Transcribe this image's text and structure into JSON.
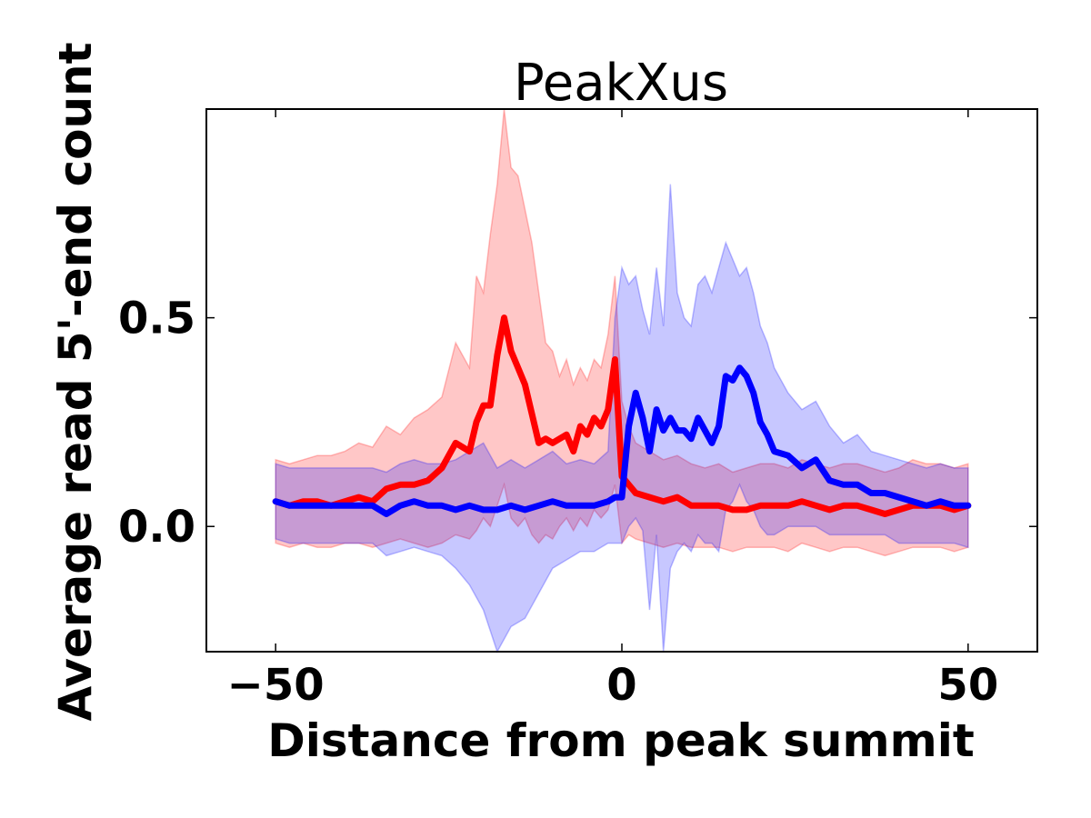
{
  "chart_data": {
    "type": "line",
    "title": "PeakXus",
    "xlabel": "Distance from peak summit",
    "ylabel": "Average read 5'-end count",
    "xlim": [
      -60,
      60
    ],
    "ylim": [
      -0.3,
      1.0
    ],
    "x_ticks": [
      {
        "value": -50,
        "label": "−50"
      },
      {
        "value": 0,
        "label": "0"
      },
      {
        "value": 50,
        "label": "50"
      }
    ],
    "y_ticks": [
      {
        "value": 0.0,
        "label": "0.0"
      },
      {
        "value": 0.5,
        "label": "0.5"
      }
    ],
    "grid": false,
    "legend": "none",
    "series": [
      {
        "color": "#ff0000",
        "band_color": "#ff0000",
        "x": [
          -50,
          -48,
          -46,
          -44,
          -42,
          -40,
          -38,
          -36,
          -34,
          -32,
          -30,
          -28,
          -26,
          -24,
          -22,
          -21,
          -20,
          -19,
          -18,
          -17,
          -16,
          -15,
          -14,
          -13,
          -12,
          -11,
          -10,
          -9,
          -8,
          -7,
          -6,
          -5,
          -4,
          -3,
          -2,
          -1,
          0,
          1,
          2,
          4,
          6,
          8,
          10,
          12,
          14,
          16,
          18,
          20,
          22,
          24,
          26,
          28,
          30,
          32,
          34,
          36,
          38,
          40,
          42,
          44,
          46,
          48,
          50
        ],
        "values": [
          0.06,
          0.05,
          0.06,
          0.06,
          0.05,
          0.06,
          0.07,
          0.06,
          0.09,
          0.1,
          0.1,
          0.11,
          0.14,
          0.2,
          0.18,
          0.25,
          0.29,
          0.29,
          0.41,
          0.5,
          0.42,
          0.38,
          0.34,
          0.27,
          0.2,
          0.21,
          0.2,
          0.21,
          0.22,
          0.18,
          0.24,
          0.22,
          0.26,
          0.24,
          0.28,
          0.4,
          0.12,
          0.1,
          0.08,
          0.07,
          0.06,
          0.07,
          0.05,
          0.05,
          0.05,
          0.04,
          0.04,
          0.05,
          0.05,
          0.05,
          0.06,
          0.05,
          0.04,
          0.05,
          0.05,
          0.04,
          0.03,
          0.04,
          0.05,
          0.05,
          0.05,
          0.04,
          0.05
        ],
        "upper": [
          0.16,
          0.15,
          0.16,
          0.17,
          0.17,
          0.18,
          0.2,
          0.19,
          0.24,
          0.22,
          0.26,
          0.28,
          0.31,
          0.44,
          0.38,
          0.6,
          0.56,
          0.7,
          0.82,
          1.0,
          0.86,
          0.84,
          0.76,
          0.68,
          0.56,
          0.44,
          0.42,
          0.36,
          0.4,
          0.34,
          0.38,
          0.35,
          0.4,
          0.38,
          0.46,
          0.6,
          0.3,
          0.24,
          0.2,
          0.18,
          0.16,
          0.17,
          0.15,
          0.14,
          0.15,
          0.13,
          0.14,
          0.15,
          0.15,
          0.14,
          0.16,
          0.15,
          0.14,
          0.15,
          0.15,
          0.14,
          0.13,
          0.14,
          0.16,
          0.15,
          0.15,
          0.14,
          0.15
        ],
        "lower": [
          -0.04,
          -0.05,
          -0.04,
          -0.05,
          -0.05,
          -0.04,
          -0.04,
          -0.05,
          -0.04,
          -0.03,
          -0.04,
          -0.05,
          -0.04,
          -0.02,
          -0.03,
          -0.01,
          0.02,
          0.0,
          0.05,
          0.1,
          0.02,
          0.0,
          0.02,
          -0.02,
          -0.04,
          -0.02,
          -0.03,
          0.0,
          0.02,
          -0.01,
          0.02,
          0.0,
          0.04,
          0.02,
          0.04,
          0.1,
          -0.04,
          -0.02,
          -0.03,
          -0.04,
          -0.05,
          -0.04,
          -0.05,
          -0.05,
          -0.05,
          -0.06,
          -0.05,
          -0.05,
          -0.05,
          -0.06,
          -0.04,
          -0.05,
          -0.06,
          -0.05,
          -0.05,
          -0.06,
          -0.07,
          -0.06,
          -0.05,
          -0.05,
          -0.05,
          -0.06,
          -0.05
        ]
      },
      {
        "color": "#0000ff",
        "band_color": "#0000ff",
        "x": [
          -50,
          -48,
          -46,
          -44,
          -42,
          -40,
          -38,
          -36,
          -34,
          -32,
          -30,
          -28,
          -26,
          -24,
          -22,
          -20,
          -18,
          -16,
          -14,
          -12,
          -10,
          -8,
          -6,
          -4,
          -2,
          -1,
          0,
          1,
          2,
          3,
          4,
          5,
          6,
          7,
          8,
          9,
          10,
          11,
          12,
          13,
          14,
          15,
          16,
          17,
          18,
          19,
          20,
          21,
          22,
          24,
          26,
          28,
          30,
          32,
          34,
          36,
          38,
          40,
          42,
          44,
          46,
          48,
          50
        ],
        "values": [
          0.06,
          0.05,
          0.05,
          0.05,
          0.05,
          0.05,
          0.05,
          0.05,
          0.03,
          0.05,
          0.06,
          0.05,
          0.05,
          0.04,
          0.05,
          0.04,
          0.04,
          0.05,
          0.04,
          0.05,
          0.06,
          0.05,
          0.05,
          0.05,
          0.06,
          0.07,
          0.07,
          0.24,
          0.32,
          0.26,
          0.18,
          0.28,
          0.23,
          0.26,
          0.23,
          0.23,
          0.21,
          0.26,
          0.23,
          0.2,
          0.24,
          0.36,
          0.35,
          0.38,
          0.36,
          0.32,
          0.25,
          0.22,
          0.18,
          0.17,
          0.14,
          0.16,
          0.11,
          0.1,
          0.1,
          0.08,
          0.08,
          0.07,
          0.06,
          0.05,
          0.06,
          0.05,
          0.05
        ],
        "upper": [
          0.15,
          0.14,
          0.14,
          0.14,
          0.14,
          0.14,
          0.14,
          0.14,
          0.13,
          0.15,
          0.16,
          0.15,
          0.15,
          0.16,
          0.18,
          0.2,
          0.14,
          0.16,
          0.14,
          0.16,
          0.18,
          0.15,
          0.16,
          0.15,
          0.18,
          0.5,
          0.62,
          0.58,
          0.6,
          0.52,
          0.46,
          0.62,
          0.48,
          0.82,
          0.56,
          0.5,
          0.48,
          0.58,
          0.6,
          0.56,
          0.62,
          0.68,
          0.64,
          0.6,
          0.62,
          0.56,
          0.48,
          0.44,
          0.38,
          0.32,
          0.28,
          0.3,
          0.24,
          0.2,
          0.22,
          0.18,
          0.17,
          0.16,
          0.15,
          0.14,
          0.15,
          0.14,
          0.14
        ],
        "lower": [
          -0.03,
          -0.04,
          -0.04,
          -0.04,
          -0.04,
          -0.04,
          -0.04,
          -0.04,
          -0.07,
          -0.06,
          -0.05,
          -0.06,
          -0.07,
          -0.1,
          -0.14,
          -0.2,
          -0.3,
          -0.24,
          -0.22,
          -0.16,
          -0.1,
          -0.08,
          -0.06,
          -0.06,
          -0.04,
          -0.04,
          -0.04,
          0.0,
          0.02,
          -0.01,
          -0.2,
          -0.02,
          -0.3,
          -0.1,
          -0.06,
          -0.04,
          -0.06,
          -0.02,
          -0.04,
          -0.04,
          -0.06,
          0.04,
          0.06,
          0.1,
          0.06,
          0.04,
          0.0,
          -0.02,
          -0.02,
          0.0,
          0.0,
          0.0,
          -0.02,
          -0.02,
          -0.02,
          -0.02,
          -0.02,
          -0.04,
          -0.04,
          -0.04,
          -0.04,
          -0.04,
          -0.05
        ]
      }
    ]
  }
}
